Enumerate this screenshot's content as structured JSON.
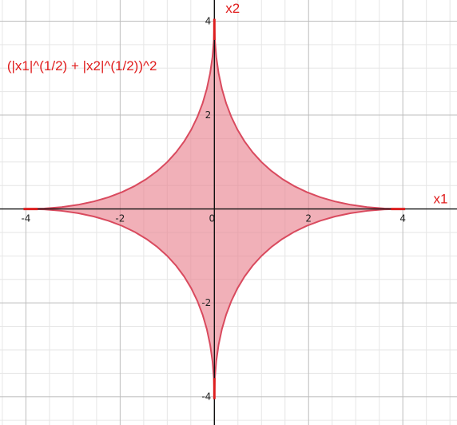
{
  "chart_data": {
    "type": "area",
    "title": "",
    "xlabel": "x1",
    "ylabel": "x2",
    "xlim": [
      -4.55,
      5.15
    ],
    "ylim": [
      -4.6,
      4.45
    ],
    "grid": true,
    "x_ticks": [
      -4,
      -2,
      0,
      2,
      4
    ],
    "y_ticks": [
      4,
      2,
      -2,
      -4
    ],
    "x_tick_labels": [
      "-4",
      "-2",
      "0",
      "2",
      "4"
    ],
    "y_tick_labels": [
      "4",
      "2",
      "-2",
      "-4"
    ],
    "annotation": "(|x1|^(1/2) + |x2|^(1/2))^2",
    "series": [
      {
        "level": 4,
        "shape": "astroid-like star",
        "points": [
          [
            0,
            4
          ],
          [
            0.01,
            3.61
          ],
          [
            0.04,
            3.24
          ],
          [
            0.09,
            2.89
          ],
          [
            0.16,
            2.56
          ],
          [
            0.25,
            2.25
          ],
          [
            0.36,
            1.96
          ],
          [
            0.49,
            1.69
          ],
          [
            0.64,
            1.44
          ],
          [
            0.81,
            1.21
          ],
          [
            1.0,
            1.0
          ],
          [
            1.21,
            0.81
          ],
          [
            1.44,
            0.64
          ],
          [
            1.69,
            0.49
          ],
          [
            1.96,
            0.36
          ],
          [
            2.25,
            0.25
          ],
          [
            2.56,
            0.16
          ],
          [
            2.89,
            0.09
          ],
          [
            3.24,
            0.04
          ],
          [
            3.61,
            0.01
          ],
          [
            4,
            0
          ]
        ]
      }
    ],
    "colors": {
      "fill": "#e9808d",
      "stroke": "#d94a5e",
      "tip": "#dd1f1f",
      "text": "#e01d1d",
      "grid_major": "#bdbdbd",
      "grid_minor": "#e6e6e6",
      "axis": "#111111"
    }
  }
}
